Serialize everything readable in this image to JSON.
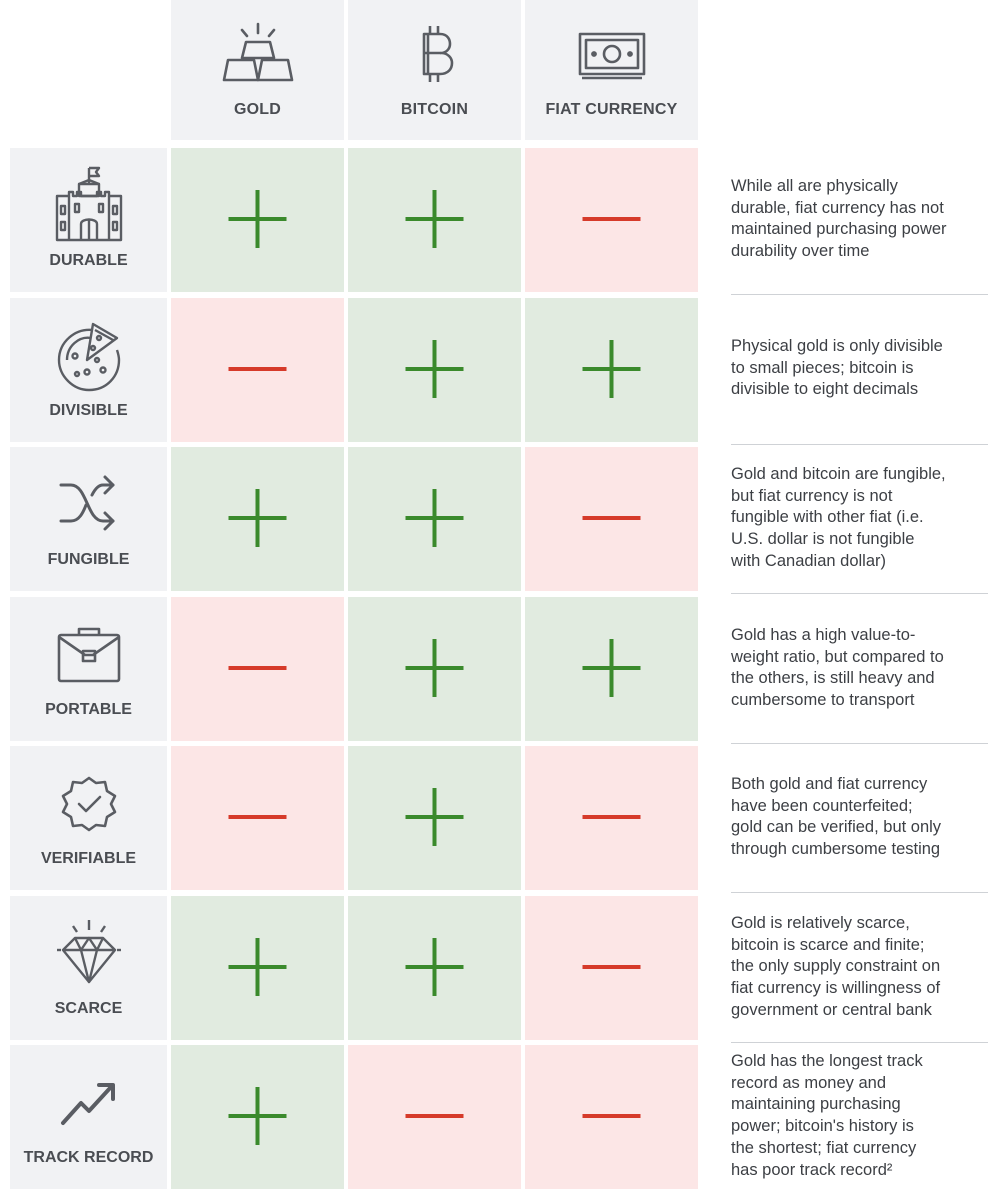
{
  "columns": [
    {
      "label": "GOLD",
      "icon": "gold-bars-icon"
    },
    {
      "label": "BITCOIN",
      "icon": "bitcoin-icon"
    },
    {
      "label": "FIAT CURRENCY",
      "icon": "banknote-icon"
    }
  ],
  "rows": [
    {
      "label": "DURABLE",
      "icon": "castle-icon",
      "ratings": [
        "+",
        "+",
        "-"
      ],
      "note": "While all are physically\ndurable, fiat currency has not\nmaintained purchasing power\ndurability over time"
    },
    {
      "label": "DIVISIBLE",
      "icon": "pizza-icon",
      "ratings": [
        "-",
        "+",
        "+"
      ],
      "note": "Physical gold is only divisible\nto small pieces; bitcoin is\ndivisible to eight decimals"
    },
    {
      "label": "FUNGIBLE",
      "icon": "shuffle-icon",
      "ratings": [
        "+",
        "+",
        "-"
      ],
      "note": "Gold and bitcoin are fungible,\nbut fiat currency is not\nfungible with other fiat (i.e.\nU.S. dollar is not fungible\nwith Canadian dollar)"
    },
    {
      "label": "PORTABLE",
      "icon": "briefcase-icon",
      "ratings": [
        "-",
        "+",
        "+"
      ],
      "note": "Gold has a high value-to-\nweight ratio, but compared to\nthe others, is still heavy and\ncumbersome to transport"
    },
    {
      "label": "VERIFIABLE",
      "icon": "verified-badge-icon",
      "ratings": [
        "-",
        "+",
        "-"
      ],
      "note": "Both gold and fiat currency\nhave been counterfeited;\ngold can be verified, but only\nthrough cumbersome testing"
    },
    {
      "label": "SCARCE",
      "icon": "diamond-icon",
      "ratings": [
        "+",
        "+",
        "-"
      ],
      "note": "Gold is relatively scarce,\nbitcoin is scarce and finite;\nthe only supply constraint on\nfiat currency is willingness of\ngovernment or central bank"
    },
    {
      "label": "TRACK RECORD",
      "icon": "trending-up-icon",
      "ratings": [
        "+",
        "-",
        "-"
      ],
      "note": "Gold has the longest track\nrecord as money and\nmaintaining purchasing\npower; bitcoin's history is\nthe shortest; fiat currency\nhas poor track record²"
    }
  ],
  "colors": {
    "positive": "#3a8a2c",
    "negative": "#d63a2a",
    "positive_bg": "#e1ebe0",
    "negative_bg": "#fce6e6",
    "header_bg": "#f1f2f4",
    "icon": "#5a5d63"
  }
}
